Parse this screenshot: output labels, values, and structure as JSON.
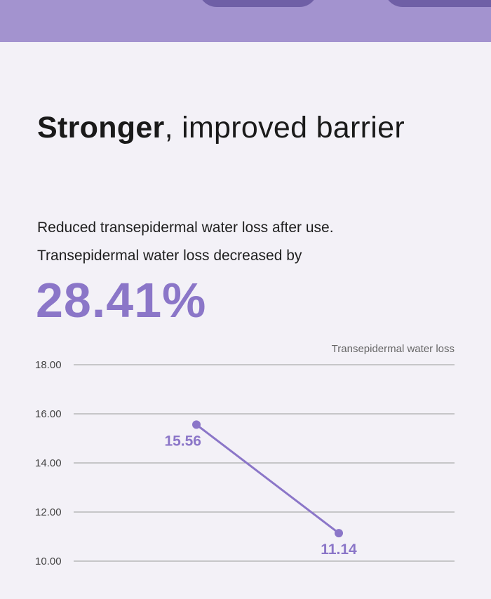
{
  "header": {
    "headline_strong": "Stronger",
    "headline_rest": ", improved barrier"
  },
  "description": {
    "line1": "Reduced transepidermal water loss after use.",
    "line2": "Transepidermal water loss decreased by"
  },
  "stat": {
    "value": "28.41%"
  },
  "colors": {
    "accent": "#8b76c8",
    "band": "#a393cf",
    "background": "#f3f1f7",
    "line": "#8b76c8",
    "grid": "#9a9a9a"
  },
  "chart_data": {
    "type": "line",
    "title": "",
    "xlabel": "",
    "ylabel": "",
    "legend": "Transepidermal water loss",
    "legend_placement": "top-right",
    "grid": true,
    "ylim": [
      10,
      18
    ],
    "yticks": [
      "18.00",
      "16.00",
      "14.00",
      "12.00",
      "10.00"
    ],
    "ytick_values": [
      18,
      16,
      14,
      12,
      10
    ],
    "series": [
      {
        "values": [
          15.56,
          11.14
        ],
        "labels": [
          "15.56",
          "11.14"
        ]
      }
    ]
  }
}
